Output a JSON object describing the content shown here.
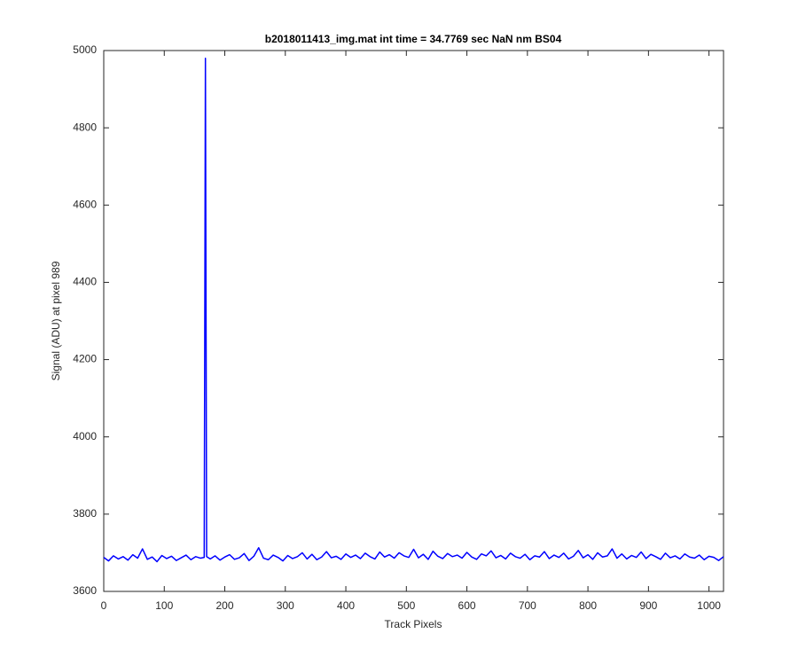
{
  "chart_data": {
    "type": "line",
    "title": "b2018011413_img.mat int time = 34.7769 sec  NaN nm BS04",
    "x_label": "Track Pixels",
    "y_label": "Signal (ADU) at pixel 989",
    "x": [
      0,
      8,
      16,
      24,
      32,
      40,
      48,
      56,
      64,
      72,
      80,
      88,
      96,
      104,
      112,
      120,
      128,
      136,
      144,
      152,
      160,
      166,
      168,
      170,
      176,
      184,
      192,
      200,
      208,
      216,
      224,
      232,
      240,
      248,
      256,
      264,
      272,
      280,
      288,
      296,
      304,
      312,
      320,
      328,
      336,
      344,
      352,
      360,
      368,
      376,
      384,
      392,
      400,
      408,
      416,
      424,
      432,
      440,
      448,
      456,
      464,
      472,
      480,
      488,
      496,
      504,
      512,
      520,
      528,
      536,
      544,
      552,
      560,
      568,
      576,
      584,
      592,
      600,
      608,
      616,
      624,
      632,
      640,
      648,
      656,
      664,
      672,
      680,
      688,
      696,
      704,
      712,
      720,
      728,
      736,
      744,
      752,
      760,
      768,
      776,
      784,
      792,
      800,
      808,
      816,
      824,
      832,
      840,
      848,
      856,
      864,
      872,
      880,
      888,
      896,
      904,
      912,
      920,
      928,
      936,
      944,
      952,
      960,
      968,
      976,
      984,
      992,
      1000,
      1008,
      1016,
      1024
    ],
    "series": [
      {
        "color": "#0000ff",
        "values": [
          3688,
          3679,
          3692,
          3684,
          3690,
          3681,
          3695,
          3686,
          3710,
          3683,
          3689,
          3677,
          3693,
          3685,
          3691,
          3680,
          3687,
          3694,
          3682,
          3690,
          3686,
          3688,
          4980,
          3690,
          3684,
          3692,
          3681,
          3689,
          3695,
          3683,
          3687,
          3698,
          3680,
          3691,
          3713,
          3686,
          3682,
          3694,
          3688,
          3679,
          3693,
          3685,
          3690,
          3700,
          3684,
          3696,
          3682,
          3689,
          3703,
          3687,
          3691,
          3683,
          3697,
          3688,
          3694,
          3685,
          3699,
          3690,
          3684,
          3702,
          3689,
          3695,
          3686,
          3700,
          3692,
          3688,
          3709,
          3687,
          3696,
          3683,
          3704,
          3691,
          3685,
          3698,
          3690,
          3694,
          3686,
          3701,
          3689,
          3683,
          3697,
          3692,
          3705,
          3687,
          3693,
          3684,
          3699,
          3690,
          3686,
          3696,
          3682,
          3692,
          3689,
          3703,
          3685,
          3694,
          3688,
          3699,
          3684,
          3691,
          3706,
          3687,
          3695,
          3683,
          3700,
          3689,
          3692,
          3710,
          3686,
          3697,
          3684,
          3693,
          3688,
          3702,
          3685,
          3696,
          3690,
          3683,
          3699,
          3687,
          3692,
          3684,
          3697,
          3689,
          3686,
          3694,
          3682,
          3691,
          3688,
          3680,
          3690
        ]
      }
    ],
    "xlim": [
      0,
      1024
    ],
    "xticks": [
      0,
      100,
      200,
      300,
      400,
      500,
      600,
      700,
      800,
      900,
      1000
    ],
    "ylim": [
      3600,
      5000
    ],
    "yticks": [
      3600,
      3800,
      4000,
      4200,
      4400,
      4600,
      4800,
      5000
    ],
    "grid": false
  }
}
